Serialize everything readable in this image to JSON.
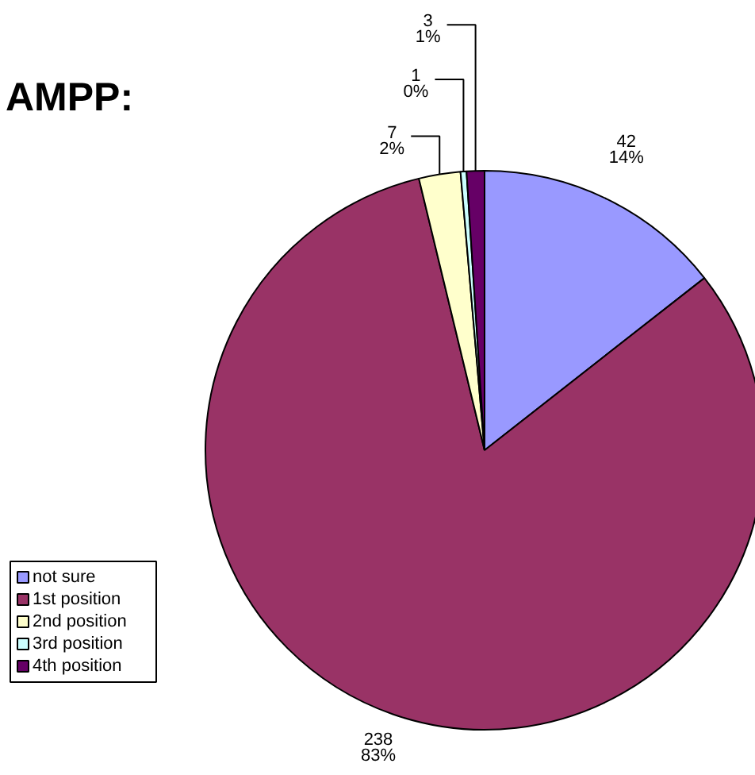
{
  "chart_data": {
    "type": "pie",
    "title": "AMPP:",
    "categories": [
      "not sure",
      "1st position",
      "2nd position",
      "3rd position",
      "4th position"
    ],
    "values": [
      42,
      238,
      7,
      1,
      3
    ],
    "colors": [
      "#9999ff",
      "#993366",
      "#ffffcc",
      "#ccffff",
      "#660066"
    ],
    "value_labels": [
      "42\n14%",
      "238\n83%",
      "7\n2%",
      "1\n0%",
      "3\n1%"
    ],
    "legend": "left"
  }
}
